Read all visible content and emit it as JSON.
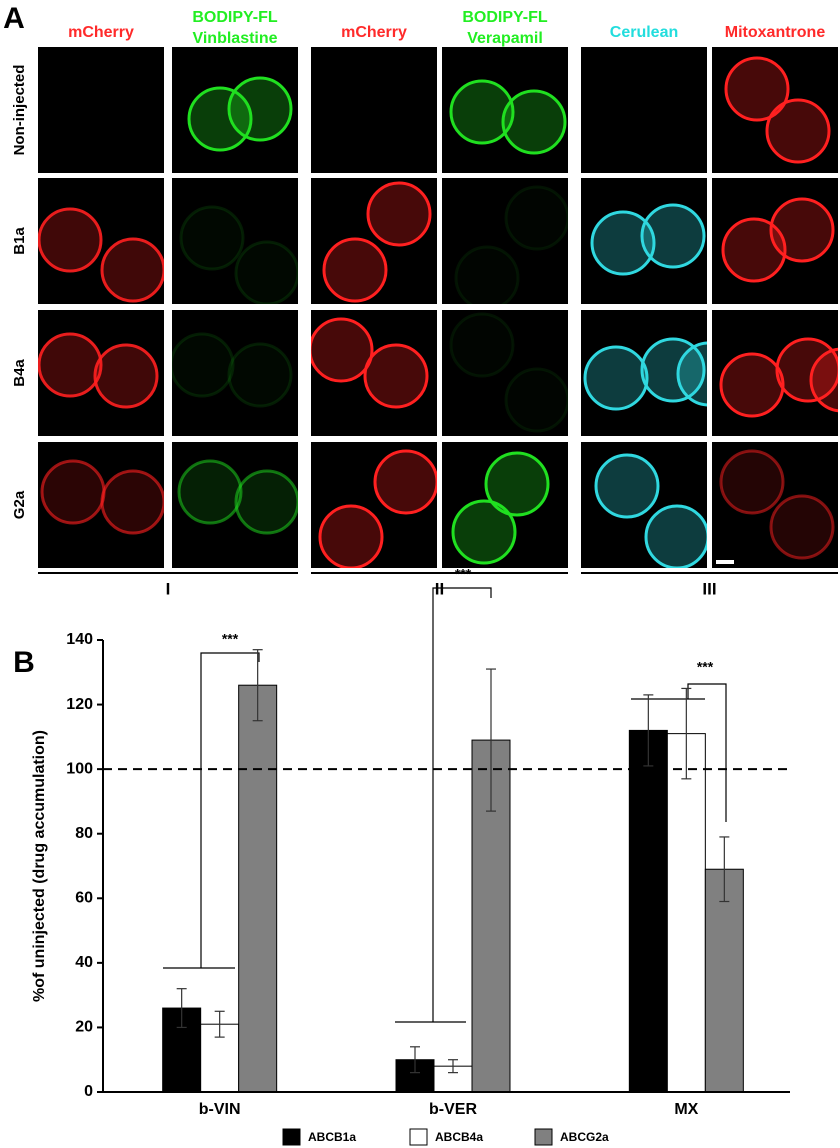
{
  "panel_a": {
    "label": "A",
    "column_headers": [
      [
        "mCherry"
      ],
      [
        "BODIPY-FL",
        "Vinblastine"
      ],
      [
        "mCherry"
      ],
      [
        "BODIPY-FL",
        "Verapamil"
      ],
      [
        "Cerulean"
      ],
      [
        "Mitoxantrone"
      ]
    ],
    "row_labels": [
      "Non-injected",
      "B1a",
      "B4a",
      "G2a"
    ],
    "group_labels": [
      "I",
      "II",
      "III"
    ]
  },
  "panel_b_label": "B",
  "chart_data": {
    "type": "bar",
    "y_label": "%of uninjected (drug accumulation)",
    "categories": [
      "b-VIN",
      "b-VER",
      "MX"
    ],
    "series": [
      {
        "name": "ABCB1a",
        "color": "#000000",
        "values": [
          26,
          10,
          112
        ],
        "errors": [
          6,
          4,
          11
        ]
      },
      {
        "name": "ABCB4a",
        "color": "#ffffff",
        "values": [
          21,
          8,
          111
        ],
        "errors": [
          4,
          2,
          14
        ]
      },
      {
        "name": "ABCG2a",
        "color": "#808080",
        "values": [
          126,
          109,
          69
        ],
        "errors": [
          11,
          22,
          10
        ]
      }
    ],
    "ylim": [
      0,
      140
    ],
    "yticks": [
      0,
      20,
      40,
      60,
      80,
      100,
      120,
      140
    ],
    "reference_line": 100,
    "annotations": [
      "***",
      "***",
      "***"
    ],
    "legend": "bottom"
  }
}
